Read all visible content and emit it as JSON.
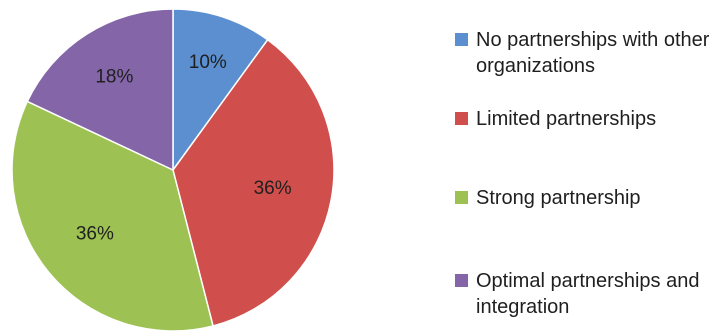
{
  "chart_data": {
    "type": "pie",
    "categories": [
      "No partnerships with other organizations",
      "Limited partnerships",
      "Strong partnership",
      "Optimal partnerships and integration"
    ],
    "values": [
      10,
      36,
      36,
      18
    ],
    "value_labels": [
      "10%",
      "36%",
      "36%",
      "18%"
    ],
    "colors": [
      "#5b8fd0",
      "#d04e4b",
      "#9dc253",
      "#8466a8"
    ],
    "start": "12 o'clock",
    "direction": "clockwise",
    "legend_position": "right"
  }
}
